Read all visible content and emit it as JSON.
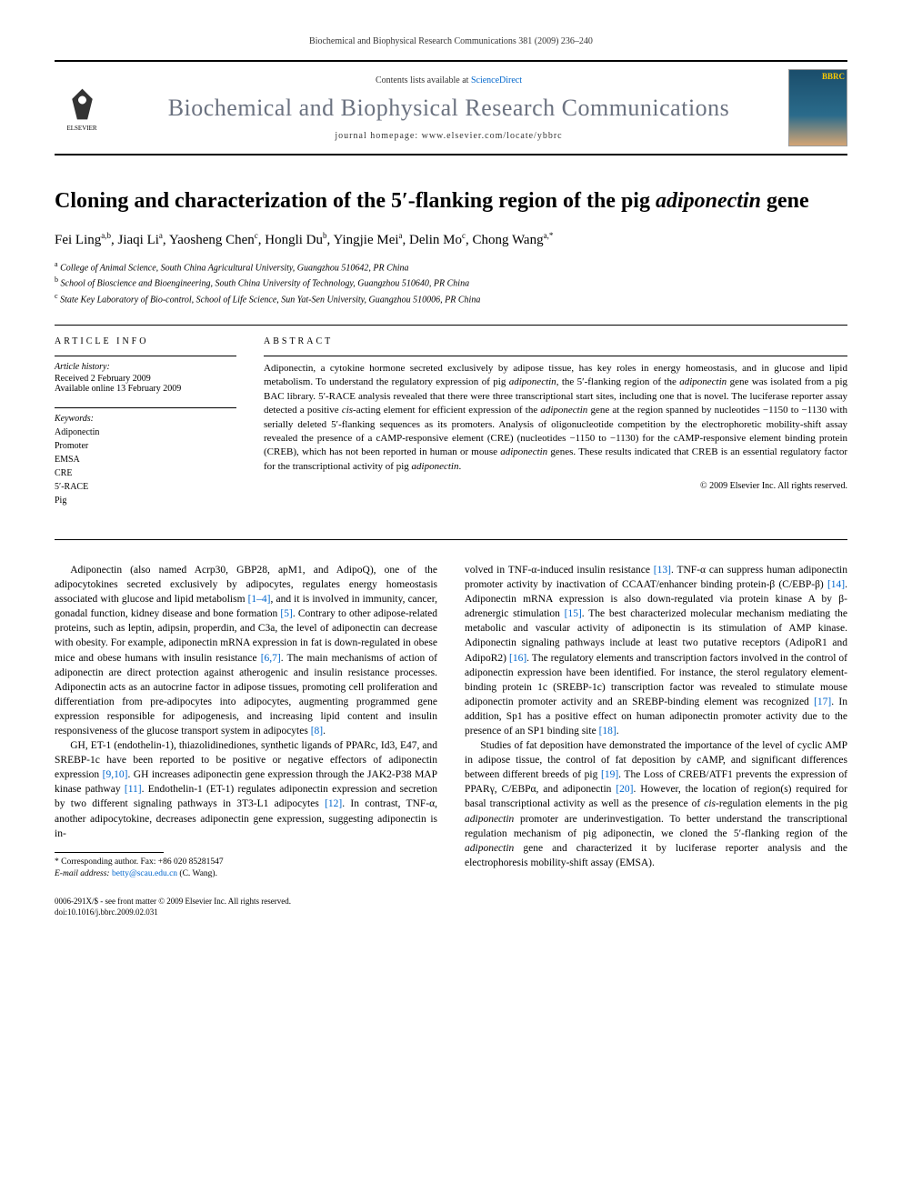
{
  "header_ref": "Biochemical and Biophysical Research Communications 381 (2009) 236–240",
  "masthead": {
    "contents_text": "Contents lists available at ",
    "contents_link": "ScienceDirect",
    "journal_name": "Biochemical and Biophysical Research Communications",
    "homepage_label": "journal homepage: ",
    "homepage_url": "www.elsevier.com/locate/ybbrc",
    "publisher": "ELSEVIER"
  },
  "title_html": "Cloning and characterization of the 5′-flanking region of the pig <em>adiponectin</em> gene",
  "authors_html": "Fei Ling<sup>a,b</sup>, Jiaqi Li<sup>a</sup>, Yaosheng Chen<sup>c</sup>, Hongli Du<sup>b</sup>, Yingjie Mei<sup>a</sup>, Delin Mo<sup>c</sup>, Chong Wang<sup>a,*</sup>",
  "affiliations": [
    {
      "sup": "a",
      "text": "College of Animal Science, South China Agricultural University, Guangzhou 510642, PR China"
    },
    {
      "sup": "b",
      "text": "School of Bioscience and Bioengineering, South China University of Technology, Guangzhou 510640, PR China"
    },
    {
      "sup": "c",
      "text": "State Key Laboratory of Bio-control, School of Life Science, Sun Yat-Sen University, Guangzhou 510006, PR China"
    }
  ],
  "article_info": {
    "heading": "ARTICLE INFO",
    "history_label": "Article history:",
    "received": "Received 2 February 2009",
    "online": "Available online 13 February 2009",
    "keywords_label": "Keywords:",
    "keywords": [
      "Adiponectin",
      "Promoter",
      "EMSA",
      "CRE",
      "5′-RACE",
      "Pig"
    ]
  },
  "abstract": {
    "heading": "ABSTRACT",
    "text_html": "Adiponectin, a cytokine hormone secreted exclusively by adipose tissue, has key roles in energy homeostasis, and in glucose and lipid metabolism. To understand the regulatory expression of pig <em>adiponectin</em>, the 5′-flanking region of the <em>adiponectin</em> gene was isolated from a pig BAC library. 5′-RACE analysis revealed that there were three transcriptional start sites, including one that is novel. The luciferase reporter assay detected a positive <em>cis</em>-acting element for efficient expression of the <em>adiponectin</em> gene at the region spanned by nucleotides −1150 to −1130 with serially deleted 5′-flanking sequences as its promoters. Analysis of oligonucleotide competition by the electrophoretic mobility-shift assay revealed the presence of a cAMP-responsive element (CRE) (nucleotides −1150 to −1130) for the cAMP-responsive element binding protein (CREB), which has not been reported in human or mouse <em>adiponectin</em> genes. These results indicated that CREB is an essential regulatory factor for the transcriptional activity of pig <em>adiponectin</em>.",
    "copyright": "© 2009 Elsevier Inc. All rights reserved."
  },
  "body": {
    "p1_html": "Adiponectin (also named Acrp30, GBP28, apM1, and AdipoQ), one of the adipocytokines secreted exclusively by adipocytes, regulates energy homeostasis associated with glucose and lipid metabolism <a href='#'>[1–4]</a>, and it is involved in immunity, cancer, gonadal function, kidney disease and bone formation <a href='#'>[5]</a>. Contrary to other adipose-related proteins, such as leptin, adipsin, properdin, and C3a, the level of adiponectin can decrease with obesity. For example, adiponectin mRNA expression in fat is down-regulated in obese mice and obese humans with insulin resistance <a href='#'>[6,7]</a>. The main mechanisms of action of adiponectin are direct protection against atherogenic and insulin resistance processes. Adiponectin acts as an autocrine factor in adipose tissues, promoting cell proliferation and differentiation from pre-adipocytes into adipocytes, augmenting programmed gene expression responsible for adipogenesis, and increasing lipid content and insulin responsiveness of the glucose transport system in adipocytes <a href='#'>[8]</a>.",
    "p2_html": "GH, ET-1 (endothelin-1), thiazolidinediones, synthetic ligands of PPARc, Id3, E47, and SREBP-1c have been reported to be positive or negative effectors of adiponectin expression <a href='#'>[9,10]</a>. GH increases adiponectin gene expression through the JAK2-P38 MAP kinase pathway <a href='#'>[11]</a>. Endothelin-1 (ET-1) regulates adiponectin expression and secretion by two different signaling pathways in 3T3-L1 adipocytes <a href='#'>[12]</a>. In contrast, TNF-α, another adipocytokine, decreases adiponectin gene expression, suggesting adiponectin is in-",
    "p3_html": "volved in TNF-α-induced insulin resistance <a href='#'>[13]</a>. TNF-α can suppress human adiponectin promoter activity by inactivation of CCAAT/enhancer binding protein-β (C/EBP-β) <a href='#'>[14]</a>. Adiponectin mRNA expression is also down-regulated via protein kinase A by β-adrenergic stimulation <a href='#'>[15]</a>. The best characterized molecular mechanism mediating the metabolic and vascular activity of adiponectin is its stimulation of AMP kinase. Adiponectin signaling pathways include at least two putative receptors (AdipoR1 and AdipoR2) <a href='#'>[16]</a>. The regulatory elements and transcription factors involved in the control of adiponectin expression have been identified. For instance, the sterol regulatory element-binding protein 1c (SREBP-1c) transcription factor was revealed to stimulate mouse adiponectin promoter activity and an SREBP-binding element was recognized <a href='#'>[17]</a>. In addition, Sp1 has a positive effect on human adiponectin promoter activity due to the presence of an SP1 binding site <a href='#'>[18]</a>.",
    "p4_html": "Studies of fat deposition have demonstrated the importance of the level of cyclic AMP in adipose tissue, the control of fat deposition by cAMP, and significant differences between different breeds of pig <a href='#'>[19]</a>. The Loss of CREB/ATF1 prevents the expression of PPARγ, C/EBPα, and adiponectin <a href='#'>[20]</a>. However, the location of region(s) required for basal transcriptional activity as well as the presence of <em>cis</em>-regulation elements in the pig <em>adiponectin</em> promoter are underinvestigation. To better understand the transcriptional regulation mechanism of pig adiponectin, we cloned the 5′-flanking region of the <em>adiponectin</em> gene and characterized it by luciferase reporter analysis and the electrophoresis mobility-shift assay (EMSA)."
  },
  "footnotes": {
    "corresponding": "* Corresponding author. Fax: +86 020 85281547",
    "email_label": "E-mail address: ",
    "email": "betty@scau.edu.cn",
    "email_name": " (C. Wang)."
  },
  "footer": {
    "line1": "0006-291X/$ - see front matter © 2009 Elsevier Inc. All rights reserved.",
    "line2": "doi:10.1016/j.bbrc.2009.02.031"
  }
}
